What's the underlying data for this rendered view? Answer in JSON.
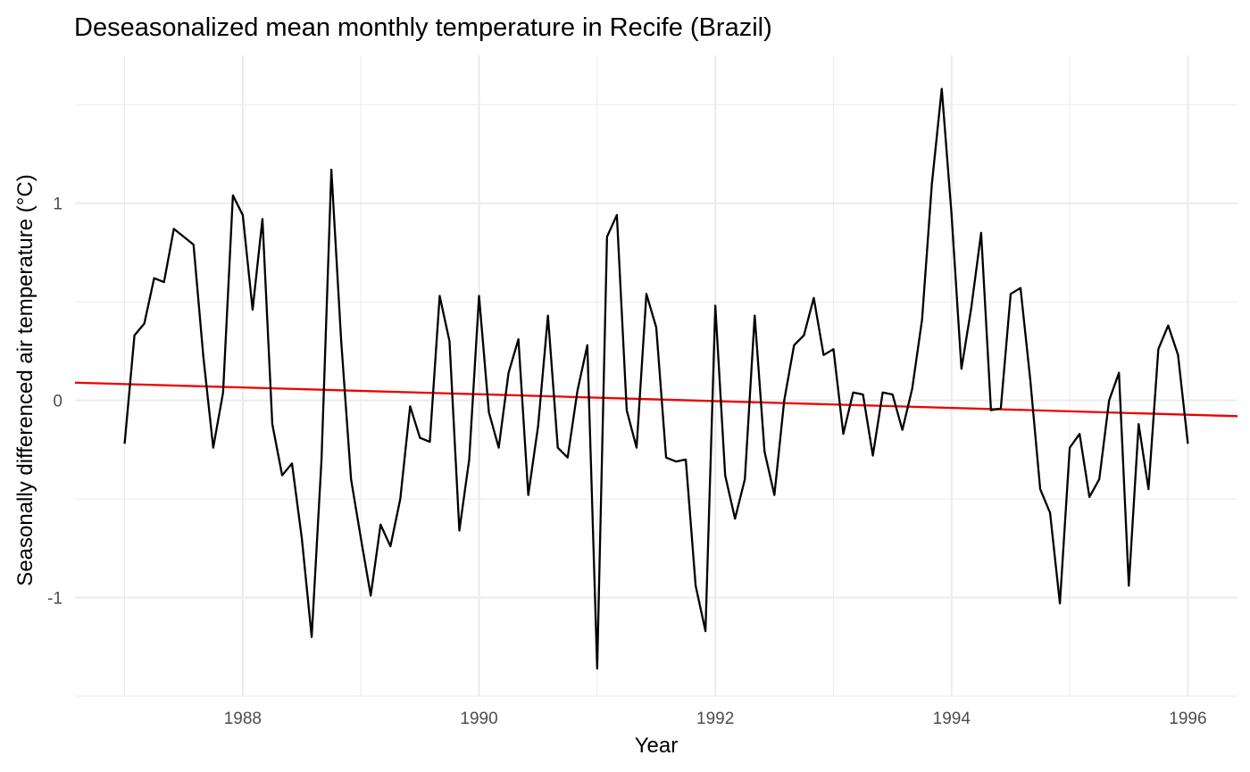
{
  "chart_data": {
    "type": "line",
    "title": "Deseasonalized mean monthly temperature in Recife (Brazil)",
    "xlabel": "Year",
    "ylabel": "Seasonally differenced air temperature (°C)",
    "xlim": [
      1986.58,
      1996.42
    ],
    "ylim": [
      -1.5,
      1.75
    ],
    "x_ticks": [
      1988,
      1990,
      1992,
      1994,
      1996
    ],
    "y_ticks": [
      -1,
      0,
      1
    ],
    "grid": true,
    "legend": "none",
    "series": [
      {
        "color": "#000000",
        "x_start": 1987.0,
        "x_step_months": 1,
        "values": [
          -0.22,
          0.33,
          0.39,
          0.62,
          0.6,
          0.87,
          0.83,
          0.79,
          0.22,
          -0.24,
          0.04,
          1.04,
          0.94,
          0.46,
          0.92,
          -0.12,
          -0.38,
          -0.32,
          -0.7,
          -1.2,
          -0.3,
          1.17,
          0.3,
          -0.4,
          -0.7,
          -0.99,
          -0.63,
          -0.74,
          -0.5,
          -0.03,
          -0.19,
          -0.21,
          0.53,
          0.3,
          -0.66,
          -0.3,
          0.53,
          -0.06,
          -0.24,
          0.14,
          0.31,
          -0.48,
          -0.13,
          0.43,
          -0.24,
          -0.29,
          0.05,
          0.28,
          -1.36,
          0.83,
          0.94,
          -0.05,
          -0.24,
          0.54,
          0.37,
          -0.29,
          -0.31,
          -0.3,
          -0.94,
          -1.17,
          0.48,
          -0.38,
          -0.6,
          -0.4,
          0.43,
          -0.26,
          -0.48,
          0.0,
          0.28,
          0.33,
          0.52,
          0.23,
          0.26,
          -0.17,
          0.04,
          0.03,
          -0.28,
          0.04,
          0.03,
          -0.15,
          0.06,
          0.41,
          1.1,
          1.58,
          0.94,
          0.16,
          0.47,
          0.85,
          -0.05,
          -0.04,
          0.54,
          0.57,
          0.1,
          -0.45,
          -0.57,
          -1.03,
          -0.24,
          -0.17,
          -0.49,
          -0.4,
          0.0,
          0.14,
          -0.94,
          -0.12,
          -0.45,
          0.26,
          0.38,
          0.23,
          -0.22
        ]
      },
      {
        "color": "#ee0000",
        "x": [
          1986.58,
          1996.42
        ],
        "values": [
          0.09,
          -0.08
        ]
      }
    ]
  }
}
